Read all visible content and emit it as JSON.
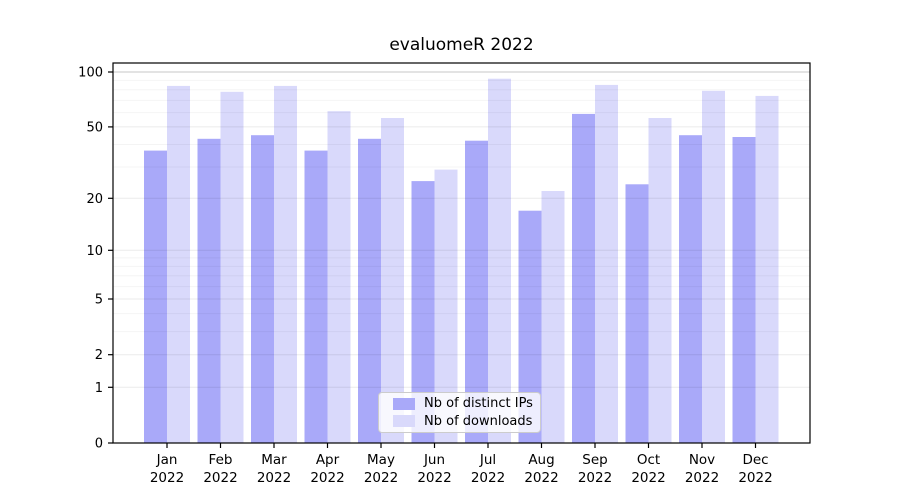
{
  "title": "evaluomeR 2022",
  "chart_data": {
    "type": "bar",
    "title": "evaluomeR 2022",
    "categories": [
      "Jan 2022",
      "Feb 2022",
      "Mar 2022",
      "Apr 2022",
      "May 2022",
      "Jun 2022",
      "Jul 2022",
      "Aug 2022",
      "Sep 2022",
      "Oct 2022",
      "Nov 2022",
      "Dec 2022"
    ],
    "month_labels": [
      "Jan",
      "Feb",
      "Mar",
      "Apr",
      "May",
      "Jun",
      "Jul",
      "Aug",
      "Sep",
      "Oct",
      "Nov",
      "Dec"
    ],
    "year_label": "2022",
    "series": [
      {
        "name": "Nb of distinct IPs",
        "color": "#a9a9f9",
        "values": [
          37,
          43,
          45,
          37,
          43,
          25,
          42,
          17,
          59,
          24,
          45,
          44
        ]
      },
      {
        "name": "Nb of downloads",
        "color": "#d9d9fb",
        "values": [
          84,
          78,
          84,
          61,
          56,
          29,
          92,
          22,
          85,
          56,
          79,
          74
        ]
      }
    ],
    "yticks": [
      0,
      1,
      2,
      5,
      10,
      20,
      50,
      100
    ],
    "scale": "log1p",
    "ylim": [
      0,
      112
    ],
    "xlabel": "",
    "ylabel": "",
    "grid": true,
    "legend_position": "bottom-center-inside"
  },
  "colors": {
    "bar_distinct_ips": "#a9a9f9",
    "bar_downloads": "#d9d9fb",
    "spine": "#000000",
    "grid_major": "rgba(0,0,0,0.08)",
    "grid_minor": "rgba(0,0,0,0.045)",
    "grid_top": "rgba(0,0,0,0.22)",
    "legend_border": "#cccccc",
    "text": "#000000"
  }
}
